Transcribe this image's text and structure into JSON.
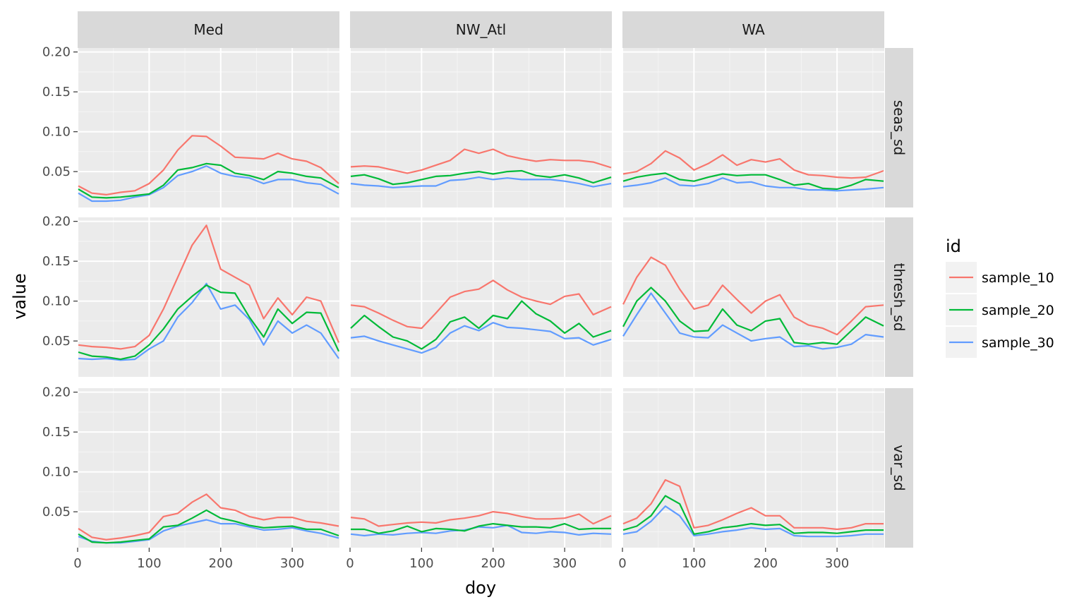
{
  "chart_data": {
    "type": "line",
    "xlabel": "doy",
    "ylabel": "value",
    "xlim": [
      0,
      366
    ],
    "ylim": [
      0.005,
      0.205
    ],
    "x_ticks": [
      0,
      100,
      200,
      300
    ],
    "y_ticks": [
      0.05,
      0.1,
      0.15,
      0.2
    ],
    "y_tick_labels": [
      "0.05",
      "0.10",
      "0.15",
      "0.20"
    ],
    "x_tick_labels": [
      "0",
      "100",
      "200",
      "300"
    ],
    "grid": true,
    "legend": {
      "title": "id",
      "placement": "right"
    },
    "facet_columns": [
      "Med",
      "NW_Atl",
      "WA"
    ],
    "facet_rows": [
      "seas_sd",
      "thresh_sd",
      "var_sd"
    ],
    "colors": {
      "sample_10": "#F8766D",
      "sample_20": "#00BA38",
      "sample_30": "#619CFF"
    },
    "x": [
      1,
      20,
      40,
      60,
      80,
      100,
      120,
      140,
      160,
      180,
      200,
      220,
      240,
      260,
      280,
      300,
      320,
      340,
      365
    ],
    "panels": [
      {
        "row": "seas_sd",
        "col": "Med",
        "series": [
          {
            "name": "sample_10",
            "values": [
              0.032,
              0.023,
              0.021,
              0.024,
              0.026,
              0.035,
              0.052,
              0.077,
              0.095,
              0.094,
              0.082,
              0.068,
              0.067,
              0.066,
              0.073,
              0.066,
              0.063,
              0.055,
              0.035
            ]
          },
          {
            "name": "sample_20",
            "values": [
              0.028,
              0.018,
              0.017,
              0.018,
              0.02,
              0.022,
              0.033,
              0.052,
              0.055,
              0.06,
              0.058,
              0.048,
              0.045,
              0.04,
              0.05,
              0.048,
              0.044,
              0.042,
              0.03
            ]
          },
          {
            "name": "sample_30",
            "values": [
              0.023,
              0.013,
              0.013,
              0.014,
              0.018,
              0.021,
              0.03,
              0.045,
              0.05,
              0.057,
              0.048,
              0.044,
              0.042,
              0.035,
              0.04,
              0.04,
              0.036,
              0.034,
              0.022
            ]
          }
        ]
      },
      {
        "row": "seas_sd",
        "col": "NW_Atl",
        "series": [
          {
            "name": "sample_10",
            "values": [
              0.056,
              0.057,
              0.056,
              0.052,
              0.048,
              0.052,
              0.058,
              0.064,
              0.078,
              0.073,
              0.078,
              0.07,
              0.066,
              0.063,
              0.065,
              0.064,
              0.064,
              0.062,
              0.055
            ]
          },
          {
            "name": "sample_20",
            "values": [
              0.044,
              0.046,
              0.041,
              0.034,
              0.036,
              0.04,
              0.044,
              0.045,
              0.048,
              0.05,
              0.047,
              0.05,
              0.051,
              0.045,
              0.043,
              0.046,
              0.042,
              0.036,
              0.043
            ]
          },
          {
            "name": "sample_30",
            "values": [
              0.035,
              0.033,
              0.032,
              0.03,
              0.031,
              0.032,
              0.032,
              0.039,
              0.04,
              0.043,
              0.04,
              0.042,
              0.04,
              0.04,
              0.04,
              0.038,
              0.035,
              0.031,
              0.035
            ]
          }
        ]
      },
      {
        "row": "seas_sd",
        "col": "WA",
        "series": [
          {
            "name": "sample_10",
            "values": [
              0.047,
              0.05,
              0.06,
              0.076,
              0.067,
              0.052,
              0.06,
              0.071,
              0.058,
              0.065,
              0.062,
              0.066,
              0.052,
              0.046,
              0.045,
              0.043,
              0.042,
              0.043,
              0.051
            ]
          },
          {
            "name": "sample_20",
            "values": [
              0.038,
              0.043,
              0.046,
              0.048,
              0.04,
              0.038,
              0.043,
              0.047,
              0.045,
              0.046,
              0.046,
              0.04,
              0.033,
              0.035,
              0.029,
              0.028,
              0.033,
              0.04,
              0.038
            ]
          },
          {
            "name": "sample_30",
            "values": [
              0.031,
              0.033,
              0.036,
              0.042,
              0.033,
              0.032,
              0.035,
              0.042,
              0.036,
              0.037,
              0.032,
              0.03,
              0.03,
              0.027,
              0.027,
              0.026,
              0.027,
              0.028,
              0.03
            ]
          }
        ]
      },
      {
        "row": "thresh_sd",
        "col": "Med",
        "series": [
          {
            "name": "sample_10",
            "values": [
              0.045,
              0.043,
              0.042,
              0.04,
              0.043,
              0.057,
              0.09,
              0.13,
              0.17,
              0.195,
              0.14,
              0.13,
              0.12,
              0.078,
              0.104,
              0.083,
              0.105,
              0.1,
              0.048
            ]
          },
          {
            "name": "sample_20",
            "values": [
              0.036,
              0.031,
              0.03,
              0.027,
              0.031,
              0.045,
              0.065,
              0.09,
              0.106,
              0.12,
              0.111,
              0.11,
              0.08,
              0.055,
              0.09,
              0.072,
              0.086,
              0.085,
              0.037
            ]
          },
          {
            "name": "sample_30",
            "values": [
              0.028,
              0.027,
              0.028,
              0.026,
              0.027,
              0.04,
              0.05,
              0.08,
              0.098,
              0.122,
              0.09,
              0.095,
              0.077,
              0.045,
              0.075,
              0.06,
              0.07,
              0.06,
              0.028
            ]
          }
        ]
      },
      {
        "row": "thresh_sd",
        "col": "NW_Atl",
        "series": [
          {
            "name": "sample_10",
            "values": [
              0.095,
              0.093,
              0.085,
              0.076,
              0.068,
              0.066,
              0.085,
              0.105,
              0.112,
              0.115,
              0.126,
              0.114,
              0.105,
              0.1,
              0.096,
              0.106,
              0.109,
              0.083,
              0.093
            ]
          },
          {
            "name": "sample_20",
            "values": [
              0.066,
              0.082,
              0.068,
              0.055,
              0.05,
              0.04,
              0.052,
              0.074,
              0.08,
              0.066,
              0.082,
              0.078,
              0.1,
              0.084,
              0.075,
              0.06,
              0.072,
              0.055,
              0.063
            ]
          },
          {
            "name": "sample_30",
            "values": [
              0.054,
              0.056,
              0.05,
              0.045,
              0.04,
              0.035,
              0.042,
              0.06,
              0.069,
              0.063,
              0.073,
              0.067,
              0.066,
              0.064,
              0.062,
              0.053,
              0.054,
              0.045,
              0.052
            ]
          }
        ]
      },
      {
        "row": "thresh_sd",
        "col": "WA",
        "series": [
          {
            "name": "sample_10",
            "values": [
              0.096,
              0.13,
              0.155,
              0.145,
              0.115,
              0.09,
              0.095,
              0.12,
              0.102,
              0.085,
              0.1,
              0.108,
              0.08,
              0.07,
              0.066,
              0.058,
              0.075,
              0.093,
              0.095
            ]
          },
          {
            "name": "sample_20",
            "values": [
              0.068,
              0.1,
              0.117,
              0.1,
              0.075,
              0.062,
              0.063,
              0.09,
              0.07,
              0.063,
              0.075,
              0.078,
              0.048,
              0.046,
              0.048,
              0.046,
              0.063,
              0.08,
              0.069
            ]
          },
          {
            "name": "sample_30",
            "values": [
              0.056,
              0.083,
              0.11,
              0.085,
              0.06,
              0.055,
              0.054,
              0.07,
              0.06,
              0.05,
              0.053,
              0.055,
              0.043,
              0.044,
              0.04,
              0.042,
              0.046,
              0.058,
              0.055
            ]
          }
        ]
      },
      {
        "row": "var_sd",
        "col": "Med",
        "series": [
          {
            "name": "sample_10",
            "values": [
              0.029,
              0.018,
              0.015,
              0.017,
              0.02,
              0.024,
              0.044,
              0.048,
              0.062,
              0.072,
              0.055,
              0.052,
              0.044,
              0.04,
              0.043,
              0.043,
              0.038,
              0.036,
              0.032
            ]
          },
          {
            "name": "sample_20",
            "values": [
              0.022,
              0.012,
              0.011,
              0.012,
              0.014,
              0.016,
              0.031,
              0.033,
              0.042,
              0.052,
              0.042,
              0.038,
              0.033,
              0.03,
              0.031,
              0.032,
              0.028,
              0.028,
              0.02
            ]
          },
          {
            "name": "sample_30",
            "values": [
              0.019,
              0.013,
              0.011,
              0.011,
              0.013,
              0.015,
              0.026,
              0.032,
              0.036,
              0.04,
              0.035,
              0.035,
              0.031,
              0.027,
              0.028,
              0.03,
              0.026,
              0.023,
              0.017
            ]
          }
        ]
      },
      {
        "row": "var_sd",
        "col": "NW_Atl",
        "series": [
          {
            "name": "sample_10",
            "values": [
              0.043,
              0.041,
              0.032,
              0.034,
              0.036,
              0.037,
              0.036,
              0.04,
              0.042,
              0.045,
              0.05,
              0.048,
              0.044,
              0.041,
              0.041,
              0.042,
              0.047,
              0.035,
              0.045
            ]
          },
          {
            "name": "sample_20",
            "values": [
              0.028,
              0.028,
              0.023,
              0.026,
              0.032,
              0.025,
              0.029,
              0.028,
              0.026,
              0.032,
              0.035,
              0.033,
              0.031,
              0.031,
              0.03,
              0.035,
              0.028,
              0.029,
              0.029
            ]
          },
          {
            "name": "sample_30",
            "values": [
              0.022,
              0.02,
              0.022,
              0.021,
              0.023,
              0.024,
              0.023,
              0.026,
              0.027,
              0.031,
              0.03,
              0.033,
              0.024,
              0.023,
              0.025,
              0.024,
              0.021,
              0.023,
              0.022
            ]
          }
        ]
      },
      {
        "row": "var_sd",
        "col": "WA",
        "series": [
          {
            "name": "sample_10",
            "values": [
              0.035,
              0.042,
              0.06,
              0.09,
              0.082,
              0.03,
              0.033,
              0.04,
              0.048,
              0.055,
              0.045,
              0.045,
              0.03,
              0.03,
              0.03,
              0.028,
              0.03,
              0.035,
              0.035
            ]
          },
          {
            "name": "sample_20",
            "values": [
              0.027,
              0.032,
              0.045,
              0.07,
              0.06,
              0.022,
              0.025,
              0.03,
              0.032,
              0.035,
              0.033,
              0.034,
              0.023,
              0.024,
              0.024,
              0.023,
              0.025,
              0.027,
              0.027
            ]
          },
          {
            "name": "sample_30",
            "values": [
              0.022,
              0.025,
              0.038,
              0.057,
              0.045,
              0.02,
              0.022,
              0.025,
              0.027,
              0.03,
              0.028,
              0.029,
              0.02,
              0.019,
              0.019,
              0.019,
              0.02,
              0.022,
              0.022
            ]
          }
        ]
      }
    ]
  }
}
